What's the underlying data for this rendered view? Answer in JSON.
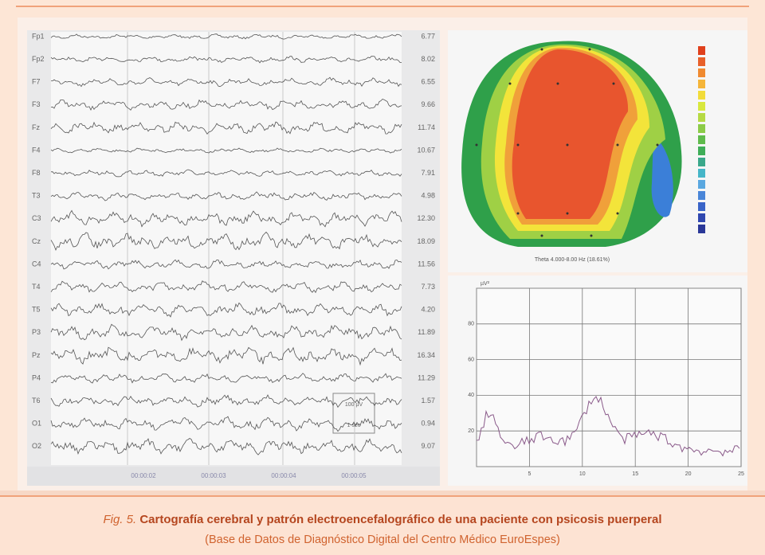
{
  "eeg": {
    "channels": [
      {
        "label": "Fp1",
        "value": "6.77"
      },
      {
        "label": "Fp2",
        "value": "8.02"
      },
      {
        "label": "F7",
        "value": "6.55"
      },
      {
        "label": "F3",
        "value": "9.66"
      },
      {
        "label": "Fz",
        "value": "11.74"
      },
      {
        "label": "F4",
        "value": "10.67"
      },
      {
        "label": "F8",
        "value": "7.91"
      },
      {
        "label": "T3",
        "value": "4.98"
      },
      {
        "label": "C3",
        "value": "12.30"
      },
      {
        "label": "Cz",
        "value": "18.09"
      },
      {
        "label": "C4",
        "value": "11.56"
      },
      {
        "label": "T4",
        "value": "7.73"
      },
      {
        "label": "T5",
        "value": "4.20"
      },
      {
        "label": "P3",
        "value": "11.89"
      },
      {
        "label": "Pz",
        "value": "16.34"
      },
      {
        "label": "P4",
        "value": "11.29"
      },
      {
        "label": "T6",
        "value": "1.57"
      },
      {
        "label": "O1",
        "value": "0.94"
      },
      {
        "label": "O2",
        "value": "9.07"
      }
    ],
    "time_labels": [
      "00:00:02",
      "00:00:03",
      "00:00:04",
      "00:00:05"
    ],
    "scale_amplitude": "100 µV",
    "scale_time": "1 sec"
  },
  "topomap": {
    "caption": "Theta 4.000-8.00 Hz (18.61%)"
  },
  "spectrum": {
    "y_unit": "µV²",
    "xlim": [
      0,
      25
    ],
    "xticks": [
      5,
      10,
      15,
      20,
      25
    ],
    "ylim": [
      0,
      100
    ],
    "yticks": [
      20,
      40,
      60,
      80
    ]
  },
  "caption": {
    "figure": "Fig. 5.",
    "title": "Cartografía cerebral y patrón electroencefalográfico de una paciente con psicosis puerperal",
    "source": "(Base de Datos de Diagnóstico Digital del Centro Médico EuroEspes)"
  }
}
